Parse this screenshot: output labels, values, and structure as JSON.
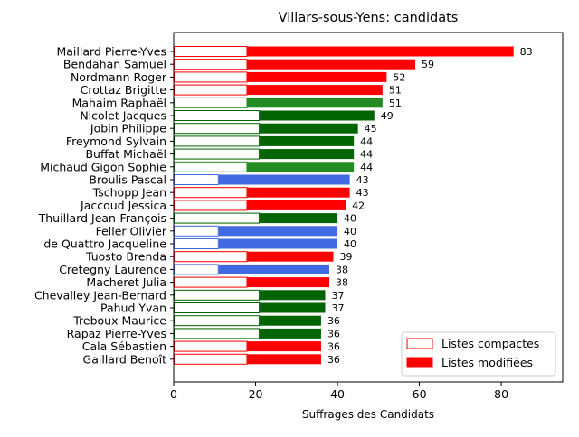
{
  "chart_data": {
    "type": "bar",
    "orientation": "horizontal",
    "stacked": true,
    "title": "Villars-sous-Yens: candidats",
    "xlabel": "Suffrages des Candidats",
    "ylabel": "",
    "xlim": [
      0,
      95
    ],
    "xticks": [
      0,
      20,
      40,
      60,
      80
    ],
    "grid": false,
    "legend_position": "lower-right",
    "legend": [
      {
        "label": "Listes compactes",
        "style": "outline",
        "color": "#ff0000"
      },
      {
        "label": "Listes modifiées",
        "style": "filled",
        "color": "#ff0000"
      }
    ],
    "categories": [
      "Maillard Pierre-Yves",
      "Bendahan Samuel",
      "Nordmann Roger",
      "Crottaz Brigitte",
      "Mahaim Raphaël",
      "Nicolet Jacques",
      "Jobin Philippe",
      "Freymond Sylvain",
      "Buffat Michaël",
      "Michaud Gigon Sophie",
      "Broulis Pascal",
      "Tschopp Jean",
      "Jaccoud Jessica",
      "Thuillard Jean-François",
      "Feller Olivier",
      "de Quattro Jacqueline",
      "Tuosto Brenda",
      "Cretegny Laurence",
      "Macheret Julia",
      "Chevalley Jean-Bernard",
      "Pahud Yvan",
      "Treboux Maurice",
      "Rapaz Pierre-Yves",
      "Cala Sébastien",
      "Gaillard Benoît"
    ],
    "totals": [
      83,
      59,
      52,
      51,
      51,
      49,
      45,
      44,
      44,
      44,
      43,
      43,
      42,
      40,
      40,
      40,
      39,
      38,
      38,
      37,
      37,
      36,
      36,
      36,
      36
    ],
    "series": [
      {
        "name": "Listes compactes",
        "values": [
          18,
          18,
          18,
          18,
          18,
          21,
          21,
          21,
          21,
          18,
          11,
          18,
          18,
          21,
          11,
          11,
          18,
          11,
          18,
          21,
          21,
          21,
          21,
          18,
          18
        ]
      },
      {
        "name": "Listes modifiées",
        "values": [
          65,
          41,
          34,
          33,
          33,
          28,
          24,
          23,
          23,
          26,
          32,
          25,
          24,
          19,
          29,
          29,
          21,
          27,
          20,
          16,
          16,
          15,
          15,
          18,
          18
        ]
      }
    ],
    "bar_colors": [
      "#ff0000",
      "#ff0000",
      "#ff0000",
      "#ff0000",
      "#228b22",
      "#006400",
      "#006400",
      "#006400",
      "#006400",
      "#228b22",
      "#4169e1",
      "#ff0000",
      "#ff0000",
      "#006400",
      "#4169e1",
      "#4169e1",
      "#ff0000",
      "#4169e1",
      "#ff0000",
      "#006400",
      "#006400",
      "#006400",
      "#006400",
      "#ff0000",
      "#ff0000"
    ]
  }
}
